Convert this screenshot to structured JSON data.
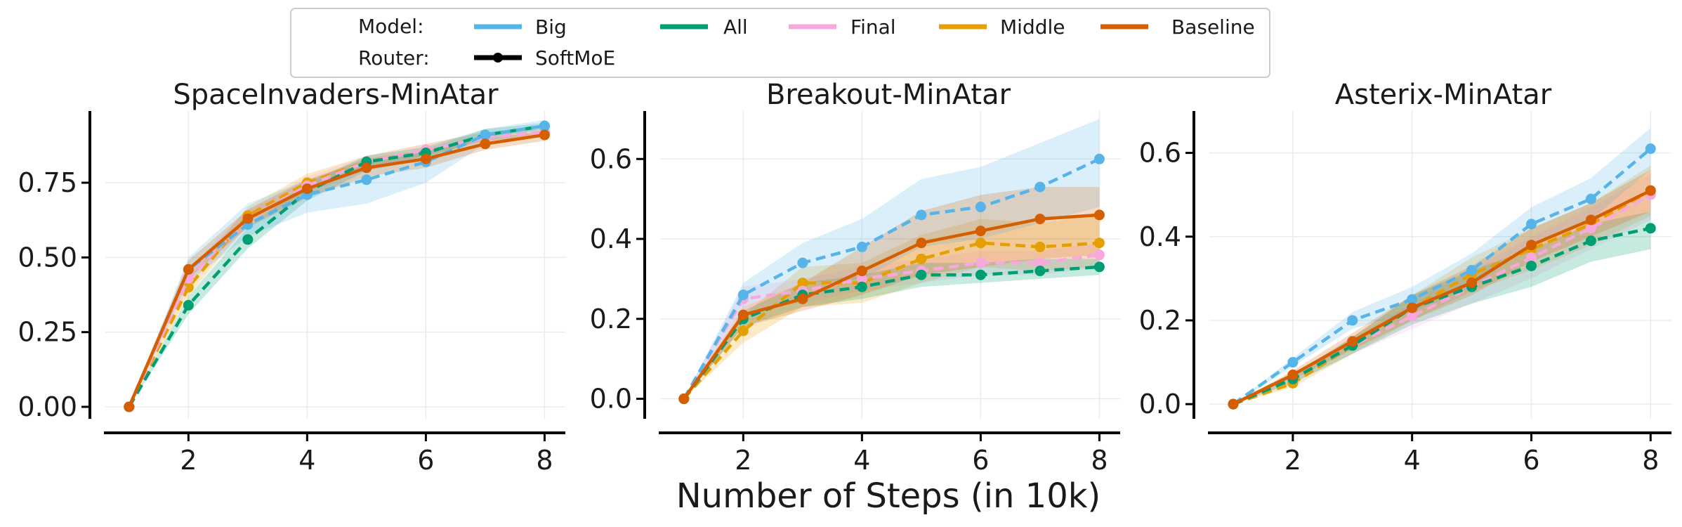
{
  "figure": {
    "xlabel": "Number of Steps (in 10k)"
  },
  "legend": {
    "model_label": "Model:",
    "router_label": "Router:",
    "entries": [
      {
        "name": "Big",
        "color": "#56B4E9"
      },
      {
        "name": "All",
        "color": "#009E73"
      },
      {
        "name": "Final",
        "color": "#F7A8DD"
      },
      {
        "name": "Middle",
        "color": "#E69F00"
      },
      {
        "name": "Baseline",
        "color": "#D55E00"
      }
    ],
    "router_entry": {
      "name": "SoftMoE",
      "color": "#000000"
    }
  },
  "chart_data": [
    {
      "type": "line",
      "title": "SpaceInvaders-MinAtar",
      "xlabel": "",
      "ylabel": "",
      "xlim": [
        0.6,
        8.35
      ],
      "ylim": [
        -0.04,
        0.99
      ],
      "xticks": [
        2,
        4,
        6,
        8
      ],
      "yticks": [
        0.0,
        0.25,
        0.5,
        0.75
      ],
      "ytick_labels": [
        "0.00",
        "0.25",
        "0.50",
        "0.75"
      ],
      "x": [
        1,
        2,
        3,
        4,
        5,
        6,
        7,
        8
      ],
      "series": [
        {
          "name": "Big",
          "color": "#56B4E9",
          "dashed": true,
          "values": [
            0.0,
            0.46,
            0.61,
            0.71,
            0.76,
            0.82,
            0.91,
            0.94
          ],
          "lower": [
            0.0,
            0.42,
            0.57,
            0.65,
            0.68,
            0.75,
            0.88,
            0.92
          ],
          "upper": [
            0.0,
            0.5,
            0.68,
            0.76,
            0.82,
            0.86,
            0.93,
            0.96
          ]
        },
        {
          "name": "All",
          "color": "#009E73",
          "dashed": true,
          "values": [
            0.0,
            0.34,
            0.56,
            0.72,
            0.82,
            0.85,
            0.91,
            0.94
          ],
          "lower": [
            0.0,
            0.31,
            0.53,
            0.69,
            0.79,
            0.83,
            0.9,
            0.93
          ],
          "upper": [
            0.0,
            0.37,
            0.6,
            0.75,
            0.84,
            0.87,
            0.93,
            0.95
          ]
        },
        {
          "name": "Final",
          "color": "#F7A8DD",
          "dashed": true,
          "values": [
            0.0,
            0.43,
            0.63,
            0.74,
            0.82,
            0.86,
            0.9,
            0.92
          ],
          "lower": [
            0.0,
            0.4,
            0.6,
            0.71,
            0.8,
            0.84,
            0.89,
            0.91
          ],
          "upper": [
            0.0,
            0.46,
            0.66,
            0.77,
            0.84,
            0.88,
            0.92,
            0.93
          ]
        },
        {
          "name": "Middle",
          "color": "#E69F00",
          "dashed": true,
          "values": [
            0.0,
            0.4,
            0.64,
            0.75,
            0.82,
            0.86,
            0.9,
            0.92
          ],
          "lower": [
            0.0,
            0.37,
            0.61,
            0.72,
            0.8,
            0.84,
            0.89,
            0.91
          ],
          "upper": [
            0.0,
            0.43,
            0.67,
            0.78,
            0.84,
            0.88,
            0.92,
            0.93
          ]
        },
        {
          "name": "Baseline",
          "color": "#D55E00",
          "dashed": false,
          "values": [
            0.0,
            0.46,
            0.63,
            0.73,
            0.8,
            0.83,
            0.88,
            0.91
          ],
          "lower": [
            0.0,
            0.43,
            0.6,
            0.7,
            0.77,
            0.8,
            0.86,
            0.89
          ],
          "upper": [
            0.0,
            0.49,
            0.66,
            0.76,
            0.83,
            0.86,
            0.9,
            0.92
          ]
        }
      ]
    },
    {
      "type": "line",
      "title": "Breakout-MinAtar",
      "xlabel": "",
      "ylabel": "",
      "xlim": [
        0.6,
        8.35
      ],
      "ylim": [
        -0.05,
        0.72
      ],
      "xticks": [
        2,
        4,
        6,
        8
      ],
      "yticks": [
        0.0,
        0.2,
        0.4,
        0.6
      ],
      "ytick_labels": [
        "0.0",
        "0.2",
        "0.4",
        "0.6"
      ],
      "x": [
        1,
        2,
        3,
        4,
        5,
        6,
        7,
        8
      ],
      "series": [
        {
          "name": "Big",
          "color": "#56B4E9",
          "dashed": true,
          "values": [
            0.0,
            0.26,
            0.34,
            0.38,
            0.46,
            0.48,
            0.53,
            0.6
          ],
          "lower": [
            0.0,
            0.23,
            0.29,
            0.3,
            0.38,
            0.4,
            0.44,
            0.48
          ],
          "upper": [
            0.0,
            0.29,
            0.39,
            0.45,
            0.55,
            0.58,
            0.64,
            0.7
          ]
        },
        {
          "name": "All",
          "color": "#009E73",
          "dashed": true,
          "values": [
            0.0,
            0.2,
            0.26,
            0.28,
            0.31,
            0.31,
            0.32,
            0.33
          ],
          "lower": [
            0.0,
            0.18,
            0.23,
            0.25,
            0.28,
            0.29,
            0.3,
            0.31
          ],
          "upper": [
            0.0,
            0.22,
            0.29,
            0.31,
            0.34,
            0.34,
            0.35,
            0.35
          ]
        },
        {
          "name": "Final",
          "color": "#F7A8DD",
          "dashed": true,
          "values": [
            0.0,
            0.25,
            0.27,
            0.3,
            0.32,
            0.34,
            0.34,
            0.36
          ],
          "lower": [
            0.0,
            0.22,
            0.24,
            0.27,
            0.29,
            0.31,
            0.31,
            0.33
          ],
          "upper": [
            0.0,
            0.28,
            0.3,
            0.33,
            0.35,
            0.37,
            0.37,
            0.39
          ]
        },
        {
          "name": "Middle",
          "color": "#E69F00",
          "dashed": true,
          "values": [
            0.0,
            0.17,
            0.29,
            0.29,
            0.35,
            0.39,
            0.38,
            0.39
          ],
          "lower": [
            0.0,
            0.14,
            0.23,
            0.24,
            0.29,
            0.33,
            0.32,
            0.33
          ],
          "upper": [
            0.0,
            0.21,
            0.33,
            0.34,
            0.41,
            0.45,
            0.44,
            0.46
          ]
        },
        {
          "name": "Baseline",
          "color": "#D55E00",
          "dashed": false,
          "values": [
            0.0,
            0.21,
            0.25,
            0.32,
            0.39,
            0.42,
            0.45,
            0.46
          ],
          "lower": [
            0.0,
            0.18,
            0.22,
            0.26,
            0.31,
            0.33,
            0.35,
            0.36
          ],
          "upper": [
            0.0,
            0.23,
            0.29,
            0.38,
            0.47,
            0.51,
            0.53,
            0.53
          ]
        }
      ]
    },
    {
      "type": "line",
      "title": "Asterix-MinAtar",
      "xlabel": "",
      "ylabel": "",
      "xlim": [
        0.6,
        8.35
      ],
      "ylim": [
        -0.035,
        0.7
      ],
      "xticks": [
        2,
        4,
        6,
        8
      ],
      "yticks": [
        0.0,
        0.2,
        0.4,
        0.6
      ],
      "ytick_labels": [
        "0.0",
        "0.2",
        "0.4",
        "0.6"
      ],
      "x": [
        1,
        2,
        3,
        4,
        5,
        6,
        7,
        8
      ],
      "series": [
        {
          "name": "Big",
          "color": "#56B4E9",
          "dashed": true,
          "values": [
            0.0,
            0.1,
            0.2,
            0.25,
            0.32,
            0.43,
            0.49,
            0.61
          ],
          "lower": [
            0.0,
            0.09,
            0.18,
            0.22,
            0.28,
            0.38,
            0.44,
            0.56
          ],
          "upper": [
            0.0,
            0.11,
            0.22,
            0.28,
            0.36,
            0.47,
            0.54,
            0.66
          ]
        },
        {
          "name": "All",
          "color": "#009E73",
          "dashed": true,
          "values": [
            0.0,
            0.06,
            0.14,
            0.23,
            0.28,
            0.33,
            0.39,
            0.42
          ],
          "lower": [
            0.0,
            0.05,
            0.12,
            0.19,
            0.24,
            0.28,
            0.34,
            0.37
          ],
          "upper": [
            0.0,
            0.07,
            0.16,
            0.26,
            0.32,
            0.37,
            0.43,
            0.46
          ]
        },
        {
          "name": "Final",
          "color": "#F7A8DD",
          "dashed": true,
          "values": [
            0.0,
            0.06,
            0.14,
            0.21,
            0.28,
            0.35,
            0.42,
            0.5
          ],
          "lower": [
            0.0,
            0.05,
            0.12,
            0.18,
            0.24,
            0.3,
            0.37,
            0.44
          ],
          "upper": [
            0.0,
            0.07,
            0.16,
            0.24,
            0.32,
            0.4,
            0.47,
            0.55
          ]
        },
        {
          "name": "Middle",
          "color": "#E69F00",
          "dashed": true,
          "values": [
            0.0,
            0.05,
            0.14,
            0.23,
            0.31,
            0.37,
            0.43,
            0.51
          ],
          "lower": [
            0.0,
            0.04,
            0.12,
            0.2,
            0.27,
            0.32,
            0.38,
            0.45
          ],
          "upper": [
            0.0,
            0.06,
            0.16,
            0.26,
            0.35,
            0.42,
            0.48,
            0.57
          ]
        },
        {
          "name": "Baseline",
          "color": "#D55E00",
          "dashed": false,
          "values": [
            0.0,
            0.07,
            0.15,
            0.23,
            0.29,
            0.38,
            0.44,
            0.51
          ],
          "lower": [
            0.0,
            0.06,
            0.13,
            0.2,
            0.26,
            0.34,
            0.4,
            0.46
          ],
          "upper": [
            0.0,
            0.08,
            0.17,
            0.26,
            0.33,
            0.42,
            0.48,
            0.56
          ]
        }
      ]
    }
  ]
}
